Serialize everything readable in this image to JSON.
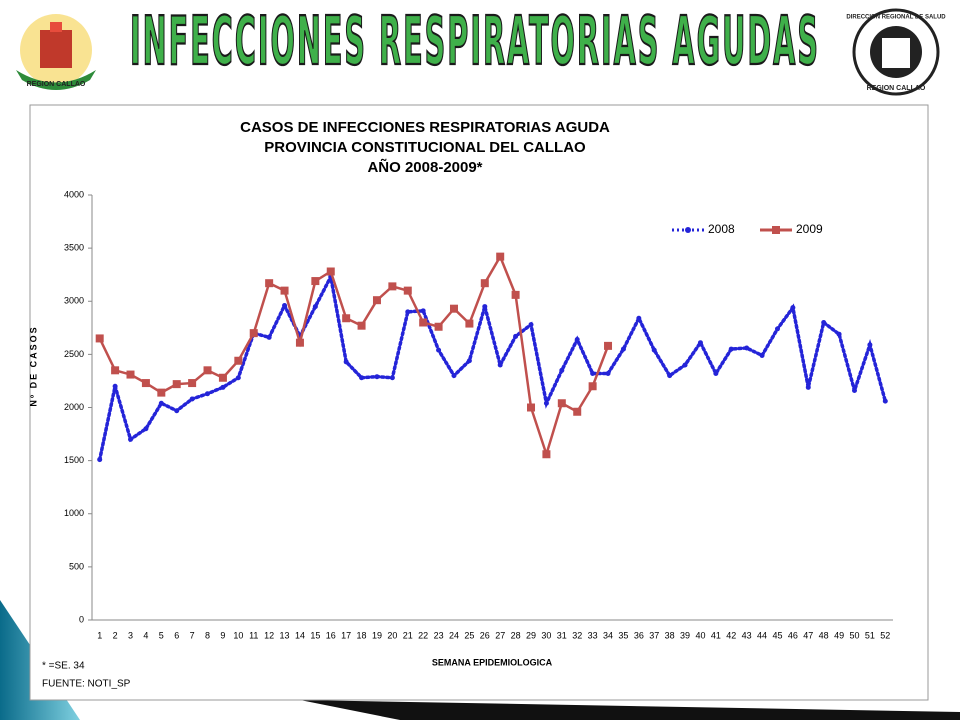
{
  "header": {
    "title": "INFECCIONES RESPIRATORIAS AGUDAS",
    "left_logo": "REGION CALLAO",
    "right_logo_top": "DIRECCION REGIONAL DE SALUD",
    "right_logo_bottom": "REGION CALLAO"
  },
  "chart_data": {
    "type": "line",
    "title": [
      "CASOS DE INFECCIONES RESPIRATORIAS AGUDA",
      "PROVINCIA CONSTITUCIONAL DEL CALLAO",
      "AÑO 2008-2009*"
    ],
    "y_label": "Nº DE CASOS",
    "x_label": "SEMANA EPIDEMIOLOGICA",
    "categories": [
      "1",
      "2",
      "3",
      "4",
      "5",
      "6",
      "7",
      "8",
      "9",
      "10",
      "11",
      "12",
      "13",
      "14",
      "15",
      "16",
      "17",
      "18",
      "19",
      "20",
      "21",
      "22",
      "23",
      "24",
      "25",
      "26",
      "27",
      "28",
      "29",
      "30",
      "31",
      "32",
      "33",
      "34",
      "35",
      "36",
      "37",
      "38",
      "39",
      "40",
      "41",
      "42",
      "43",
      "44",
      "45",
      "46",
      "47",
      "48",
      "49",
      "50",
      "51",
      "52"
    ],
    "series": [
      {
        "name": "2008",
        "color": "#2424d8",
        "style": "dotted",
        "values": [
          1510,
          2200,
          1700,
          1800,
          2040,
          1970,
          2080,
          2130,
          2190,
          2280,
          2700,
          2660,
          2960,
          2670,
          2950,
          3230,
          2430,
          2280,
          2290,
          2280,
          2900,
          2910,
          2540,
          2300,
          2440,
          2950,
          2400,
          2670,
          2780,
          2040,
          2350,
          2640,
          2320,
          2320,
          2550,
          2840,
          2540,
          2300,
          2400,
          2610,
          2320,
          2550,
          2560,
          2490,
          2740,
          2940,
          2190,
          2800,
          2690,
          2160,
          2590,
          2060
        ]
      },
      {
        "name": "2009",
        "color": "#c0504d",
        "style": "solid",
        "values": [
          2650,
          2350,
          2310,
          2230,
          2140,
          2220,
          2230,
          2350,
          2280,
          2440,
          2700,
          3170,
          3100,
          2610,
          3190,
          3280,
          2840,
          2770,
          3010,
          3140,
          3100,
          2800,
          2760,
          2930,
          2790,
          3170,
          3420,
          3060,
          2000,
          1560,
          2040,
          1960,
          2200,
          2580,
          null,
          null,
          null,
          null,
          null,
          null,
          null,
          null,
          null,
          null,
          null,
          null,
          null,
          null,
          null,
          null,
          null,
          null
        ]
      }
    ],
    "ylim": [
      0,
      4000
    ],
    "yticks": [
      0,
      500,
      1000,
      1500,
      2000,
      2500,
      3000,
      3500,
      4000
    ],
    "legend": "top-right",
    "notes": [
      "* =SE. 34",
      "FUENTE: NOTI_SP"
    ]
  }
}
